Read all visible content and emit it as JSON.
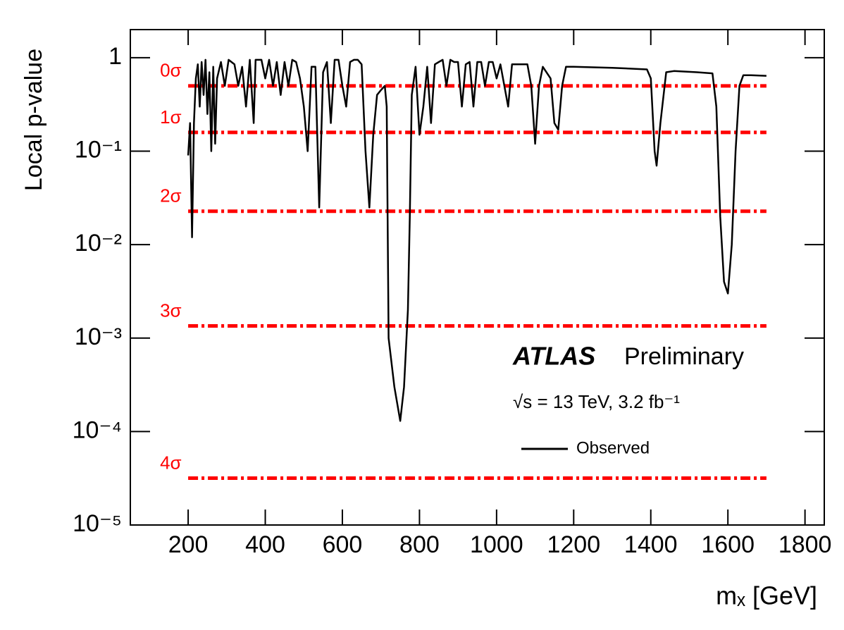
{
  "chart_data": {
    "type": "line",
    "xlabel": "mₓ [GeV]",
    "ylabel": "Local p-value",
    "annotations": {
      "experiment": "ATLAS",
      "status": "Preliminary",
      "energy": "√s = 13 TeV, 3.2 fb⁻¹"
    },
    "log_y": true,
    "legend": "right",
    "xlim": [
      50,
      1850
    ],
    "ylim": [
      1e-05,
      2
    ],
    "xticks": [
      200,
      400,
      600,
      800,
      1000,
      1200,
      1400,
      1600,
      1800
    ],
    "yticks": [
      {
        "value": 1e-05,
        "label": "10⁻⁵"
      },
      {
        "value": 0.0001,
        "label": "10⁻⁴"
      },
      {
        "value": 0.001,
        "label": "10⁻³"
      },
      {
        "value": 0.01,
        "label": "10⁻²"
      },
      {
        "value": 0.1,
        "label": "10⁻¹"
      },
      1
    ],
    "reference_lines": [
      {
        "label": "0σ",
        "value": 0.5
      },
      {
        "label": "1σ",
        "value": 0.1587
      },
      {
        "label": "2σ",
        "value": 0.02275
      },
      {
        "label": "3σ",
        "value": 0.00135
      },
      {
        "label": "4σ",
        "value": 3.17e-05
      }
    ],
    "reference_color": "#ff0000",
    "x": [
      200,
      205,
      210,
      215,
      220,
      225,
      230,
      235,
      240,
      245,
      250,
      255,
      260,
      265,
      270,
      275,
      285,
      295,
      305,
      320,
      330,
      340,
      350,
      360,
      370,
      375,
      390,
      400,
      410,
      420,
      430,
      440,
      450,
      460,
      470,
      480,
      490,
      500,
      510,
      520,
      530,
      540,
      550,
      560,
      570,
      580,
      590,
      600,
      610,
      620,
      630,
      640,
      650,
      660,
      670,
      680,
      690,
      700,
      710,
      715,
      720,
      735,
      750,
      760,
      770,
      775,
      780,
      790,
      800,
      810,
      820,
      830,
      840,
      850,
      860,
      870,
      880,
      890,
      900,
      910,
      920,
      930,
      940,
      950,
      960,
      970,
      980,
      990,
      1000,
      1010,
      1030,
      1040,
      1060,
      1080,
      1090,
      1100,
      1110,
      1120,
      1140,
      1150,
      1160,
      1170,
      1180,
      1200,
      1300,
      1390,
      1400,
      1410,
      1415,
      1425,
      1440,
      1460,
      1520,
      1560,
      1570,
      1580,
      1590,
      1600,
      1610,
      1620,
      1630,
      1640,
      1660,
      1700
    ],
    "series": [
      {
        "name": "Observed",
        "color": "#000000",
        "values": [
          0.09,
          0.2,
          0.012,
          0.2,
          0.6,
          0.85,
          0.3,
          0.9,
          0.4,
          0.95,
          0.25,
          0.7,
          0.1,
          0.8,
          0.12,
          0.6,
          0.9,
          0.5,
          0.95,
          0.85,
          0.5,
          0.8,
          0.3,
          0.95,
          0.2,
          0.95,
          0.95,
          0.6,
          0.95,
          0.5,
          0.9,
          0.4,
          0.9,
          0.5,
          0.95,
          0.9,
          0.6,
          0.3,
          0.1,
          0.8,
          0.8,
          0.025,
          0.7,
          0.9,
          0.2,
          0.95,
          0.95,
          0.5,
          0.3,
          0.9,
          0.95,
          0.95,
          0.85,
          0.1,
          0.025,
          0.15,
          0.4,
          0.45,
          0.5,
          0.3,
          0.001,
          0.0003,
          0.00013,
          0.0003,
          0.002,
          0.02,
          0.4,
          0.8,
          0.15,
          0.3,
          0.8,
          0.2,
          0.85,
          0.9,
          0.95,
          0.5,
          0.95,
          0.9,
          0.9,
          0.3,
          0.85,
          0.9,
          0.3,
          0.9,
          0.9,
          0.5,
          0.9,
          0.9,
          0.6,
          0.85,
          0.3,
          0.85,
          0.85,
          0.85,
          0.5,
          0.12,
          0.5,
          0.8,
          0.6,
          0.2,
          0.17,
          0.5,
          0.8,
          0.8,
          0.78,
          0.75,
          0.6,
          0.1,
          0.07,
          0.2,
          0.7,
          0.72,
          0.7,
          0.68,
          0.3,
          0.02,
          0.004,
          0.003,
          0.01,
          0.1,
          0.5,
          0.65,
          0.65,
          0.64
        ]
      }
    ]
  }
}
